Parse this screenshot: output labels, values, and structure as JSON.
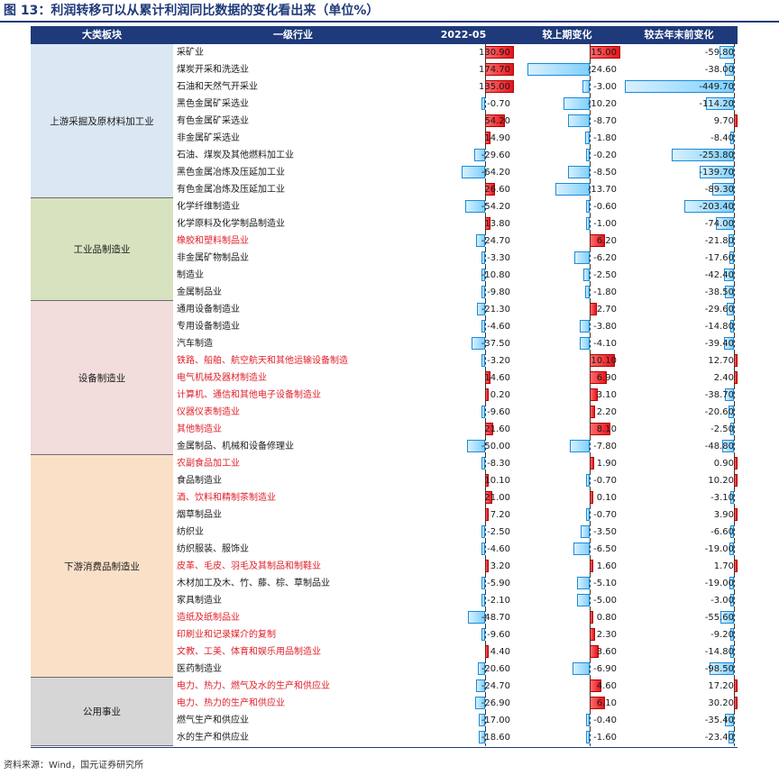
{
  "title": "图 13：利润转移可以从累计利润同比数据的变化看出来（单位%）",
  "source": "资料来源：Wind，国元证券研究所",
  "headers": {
    "sector": "大类板块",
    "industry": "一级行业",
    "c1": "2022-05",
    "c2": "较上期变化",
    "c3": "较去年末前变化"
  },
  "colors": {
    "header_bg": "#1f3a7a",
    "upstream_bg": "#dbe8f4",
    "industrial_bg": "#d7e3bf",
    "equipment_bg": "#f2dcdc",
    "consumer_bg": "#fbe0c8",
    "utility_bg": "#d6d6d6",
    "positive_bar": "#e8141c",
    "negative_bar": "#7fd0ff",
    "highlight_text": "#e0202a"
  },
  "table": {
    "groups": [
      {
        "name": "上游采掘及原材料加工业",
        "color": "upstream_bg",
        "rows": [
          {
            "industry": "采矿业",
            "red": false,
            "v1": "130.90",
            "v2": "15.00",
            "v3": "-59.80"
          },
          {
            "industry": "煤炭开采和洗选业",
            "red": false,
            "v1": "174.70",
            "v2": "-24.60",
            "v3": "-38.00"
          },
          {
            "industry": "石油和天然气开采业",
            "red": false,
            "v1": "135.00",
            "v2": "-3.00",
            "v3": "-449.70"
          },
          {
            "industry": "黑色金属矿采选业",
            "red": false,
            "v1": "-0.70",
            "v2": "-10.20",
            "v3": "-114.20"
          },
          {
            "industry": "有色金属矿采选业",
            "red": false,
            "v1": "54.20",
            "v2": "-8.70",
            "v3": "9.70"
          },
          {
            "industry": "非金属矿采选业",
            "red": false,
            "v1": "14.90",
            "v2": "-1.80",
            "v3": "-8.40"
          },
          {
            "industry": "石油、煤炭及其他燃料加工业",
            "red": false,
            "v1": "-29.60",
            "v2": "-0.20",
            "v3": "-253.80"
          },
          {
            "industry": "黑色金属冶炼及压延加工业",
            "red": false,
            "v1": "-64.20",
            "v2": "-8.50",
            "v3": "-139.70"
          },
          {
            "industry": "有色金属冶炼及压延加工业",
            "red": false,
            "v1": "26.60",
            "v2": "-13.70",
            "v3": "-89.30"
          }
        ]
      },
      {
        "name": "工业品制造业",
        "color": "industrial_bg",
        "rows": [
          {
            "industry": "化学纤维制造业",
            "red": false,
            "v1": "-54.20",
            "v2": "-0.60",
            "v3": "-203.40"
          },
          {
            "industry": "化学原料及化学制品制造业",
            "red": false,
            "v1": "13.80",
            "v2": "-1.00",
            "v3": "-74.00"
          },
          {
            "industry": "橡胶和塑料制品业",
            "red": true,
            "v1": "-24.70",
            "v2": "6.20",
            "v3": "-21.80"
          },
          {
            "industry": "非金属矿物制品业",
            "red": false,
            "v1": "-3.30",
            "v2": "-6.20",
            "v3": "-17.60"
          },
          {
            "industry": "制造业",
            "red": false,
            "v1": "-10.80",
            "v2": "-2.50",
            "v3": "-42.40"
          },
          {
            "industry": "金属制品业",
            "red": false,
            "v1": "-9.80",
            "v2": "-1.80",
            "v3": "-38.50"
          }
        ]
      },
      {
        "name": "设备制造业",
        "color": "equipment_bg",
        "rows": [
          {
            "industry": "通用设备制造业",
            "red": false,
            "v1": "-21.30",
            "v2": "2.70",
            "v3": "-29.60"
          },
          {
            "industry": "专用设备制造业",
            "red": false,
            "v1": "-4.60",
            "v2": "-3.80",
            "v3": "-14.80"
          },
          {
            "industry": "汽车制造",
            "red": false,
            "v1": "-37.50",
            "v2": "-4.10",
            "v3": "-39.40"
          },
          {
            "industry": "铁路、船舶、航空航天和其他运输设备制造",
            "red": true,
            "v1": "-3.20",
            "v2": "10.10",
            "v3": "12.70"
          },
          {
            "industry": "电气机械及器材制造业",
            "red": true,
            "v1": "14.60",
            "v2": "6.90",
            "v3": "2.40"
          },
          {
            "industry": "计算机、通信和其他电子设备制造业",
            "red": true,
            "v1": "0.20",
            "v2": "3.10",
            "v3": "-38.70"
          },
          {
            "industry": "仪器仪表制造业",
            "red": true,
            "v1": "-9.60",
            "v2": "2.20",
            "v3": "-20.60"
          },
          {
            "industry": "其他制造业",
            "red": true,
            "v1": "21.60",
            "v2": "8.10",
            "v3": "-2.50"
          },
          {
            "industry": "金属制品、机械和设备修理业",
            "red": false,
            "v1": "-50.00",
            "v2": "-7.80",
            "v3": "-48.80"
          }
        ]
      },
      {
        "name": "下游消费品制造业",
        "color": "consumer_bg",
        "rows": [
          {
            "industry": "农副食品加工业",
            "red": true,
            "v1": "-8.30",
            "v2": "1.90",
            "v3": "0.90"
          },
          {
            "industry": "食品制造业",
            "red": false,
            "v1": "10.10",
            "v2": "-0.70",
            "v3": "10.20"
          },
          {
            "industry": "酒、饮料和精制茶制造业",
            "red": true,
            "v1": "21.00",
            "v2": "0.10",
            "v3": "-3.10"
          },
          {
            "industry": "烟草制品业",
            "red": false,
            "v1": "7.20",
            "v2": "-0.70",
            "v3": "3.90"
          },
          {
            "industry": "纺织业",
            "red": false,
            "v1": "-2.50",
            "v2": "-3.50",
            "v3": "-6.60"
          },
          {
            "industry": "纺织服装、服饰业",
            "red": false,
            "v1": "-4.60",
            "v2": "-6.50",
            "v3": "-19.00"
          },
          {
            "industry": "皮革、毛皮、羽毛及其制品和制鞋业",
            "red": true,
            "v1": "3.20",
            "v2": "1.60",
            "v3": "1.70"
          },
          {
            "industry": "木材加工及木、竹、藤、棕、草制品业",
            "red": false,
            "v1": "-5.90",
            "v2": "-5.10",
            "v3": "-19.00"
          },
          {
            "industry": "家具制造业",
            "red": false,
            "v1": "-2.10",
            "v2": "-5.00",
            "v3": "-3.00"
          },
          {
            "industry": "造纸及纸制品业",
            "red": true,
            "v1": "-48.70",
            "v2": "0.80",
            "v3": "-55.60"
          },
          {
            "industry": "印刷业和记录媒介的复制",
            "red": true,
            "v1": "-9.60",
            "v2": "2.30",
            "v3": "-9.20"
          },
          {
            "industry": "文教、工美、体育和娱乐用品制造业",
            "red": true,
            "v1": "4.40",
            "v2": "3.60",
            "v3": "-14.80"
          },
          {
            "industry": "医药制造业",
            "red": false,
            "v1": "-20.60",
            "v2": "-6.90",
            "v3": "-98.50"
          }
        ]
      },
      {
        "name": "公用事业",
        "color": "utility_bg",
        "rows": [
          {
            "industry": "电力、热力、燃气及水的生产和供应业",
            "red": true,
            "v1": "-24.70",
            "v2": "4.60",
            "v3": "17.20"
          },
          {
            "industry": "电力、热力的生产和供应业",
            "red": true,
            "v1": "-26.90",
            "v2": "6.10",
            "v3": "30.20"
          },
          {
            "industry": "燃气生产和供应业",
            "red": false,
            "v1": "-17.00",
            "v2": "-0.40",
            "v3": "-35.40"
          },
          {
            "industry": "水的生产和供应业",
            "red": false,
            "v1": "-18.60",
            "v2": "-1.60",
            "v3": "-23.40"
          }
        ]
      }
    ]
  }
}
